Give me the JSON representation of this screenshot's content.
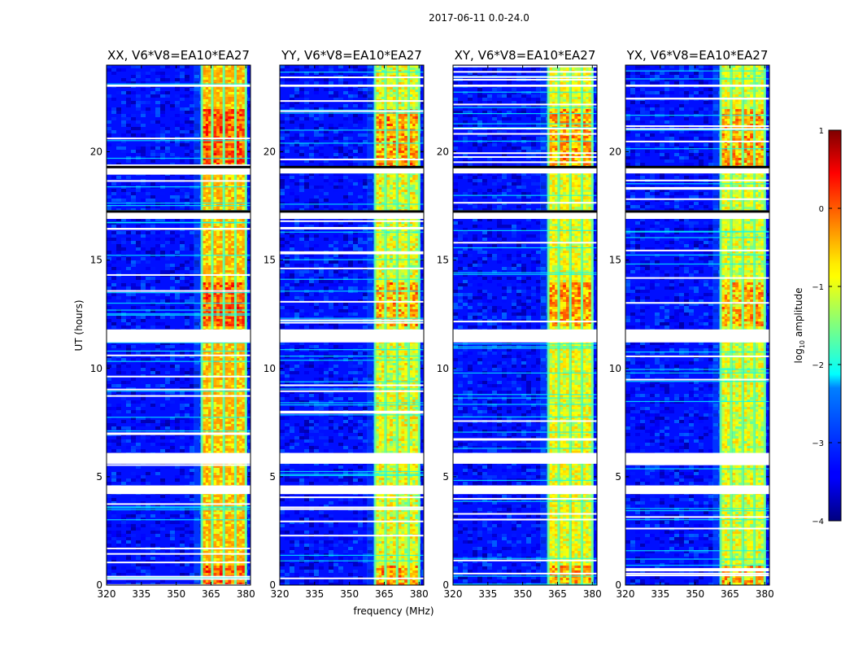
{
  "chart_data": {
    "type": "heatmap",
    "suptitle": "2017-06-11 0.0-24.0",
    "xlabel": "frequency (MHz)",
    "ylabel": "UT (hours)",
    "xlim": [
      320,
      382
    ],
    "ylim": [
      0,
      24
    ],
    "xticks": [
      320,
      335,
      350,
      365,
      380
    ],
    "yticks": [
      0,
      5,
      10,
      15,
      20
    ],
    "grid": false,
    "panels": [
      {
        "title": "XX, V6*V8=EA10*EA27",
        "polarization": "XX",
        "band_level": [
          -0.6,
          -0.3
        ]
      },
      {
        "title": "YY, V6*V8=EA10*EA27",
        "polarization": "YY",
        "band_level": [
          -1.2,
          -0.5
        ]
      },
      {
        "title": "XY, V6*V8=EA10*EA27",
        "polarization": "XY",
        "band_level": [
          -1.0,
          -0.6
        ]
      },
      {
        "title": "YX, V6*V8=EA10*EA27",
        "polarization": "YX",
        "band_level": [
          -1.2,
          -0.6
        ]
      }
    ],
    "signal_band_mhz": [
      361,
      380
    ],
    "band_subchannel_edges_mhz": [
      361,
      365.5,
      370.5,
      375.5,
      380
    ],
    "background_level": -3.3,
    "strong_rfi_hours": [
      [
        0,
        1
      ],
      [
        12,
        14
      ],
      [
        19.3,
        22
      ]
    ],
    "flagged_hours": [
      [
        4.2,
        4.6
      ],
      [
        5.6,
        6.1
      ],
      [
        11.2,
        11.8
      ],
      [
        16.9,
        17.3
      ],
      [
        19.0,
        19.3
      ],
      [
        23.0,
        23.1
      ]
    ],
    "colorbar": {
      "label": "log",
      "label_subscript": "10",
      "label_suffix": " amplitude",
      "vmin": -4,
      "vmax": 1,
      "ticks": [
        "1",
        "0",
        "−1",
        "−2",
        "−3",
        "−4"
      ],
      "tick_values": [
        1,
        0,
        -1,
        -2,
        -3,
        -4
      ],
      "colormap": "jet"
    }
  }
}
